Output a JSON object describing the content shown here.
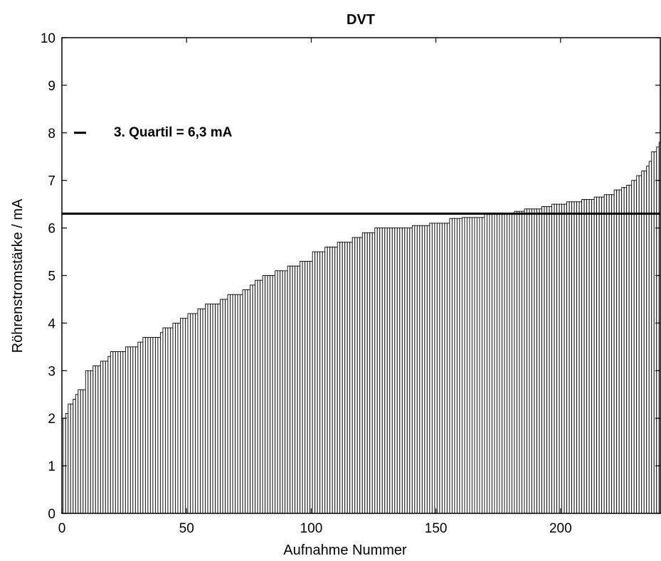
{
  "chart_data": {
    "type": "bar",
    "title": "DVT",
    "xlabel": "Aufnahme Nummer",
    "ylabel": "Röhrenstromstärke / mA",
    "xlim": [
      0,
      240
    ],
    "ylim": [
      0,
      10
    ],
    "xticks": [
      0,
      50,
      100,
      150,
      200
    ],
    "yticks": [
      0,
      1,
      2,
      3,
      4,
      5,
      6,
      7,
      8,
      9,
      10
    ],
    "grid": false,
    "bar_color": "#ffffff",
    "edge_color": "#000000",
    "reference_line": {
      "y": 6.3,
      "label": "3. Quartil = 6,3 mA"
    },
    "anchors": [
      [
        1,
        2.0
      ],
      [
        2,
        2.1
      ],
      [
        3,
        2.3
      ],
      [
        5,
        2.4
      ],
      [
        6,
        2.5
      ],
      [
        7,
        2.6
      ],
      [
        10,
        3.0
      ],
      [
        13,
        3.1
      ],
      [
        16,
        3.2
      ],
      [
        19,
        3.3
      ],
      [
        20,
        3.4
      ],
      [
        26,
        3.5
      ],
      [
        31,
        3.6
      ],
      [
        33,
        3.7
      ],
      [
        40,
        3.8
      ],
      [
        41,
        3.9
      ],
      [
        45,
        4.0
      ],
      [
        48,
        4.1
      ],
      [
        51,
        4.2
      ],
      [
        55,
        4.3
      ],
      [
        58,
        4.4
      ],
      [
        64,
        4.5
      ],
      [
        67,
        4.6
      ],
      [
        73,
        4.7
      ],
      [
        76,
        4.8
      ],
      [
        78,
        4.9
      ],
      [
        81,
        5.0
      ],
      [
        86,
        5.1
      ],
      [
        91,
        5.2
      ],
      [
        96,
        5.3
      ],
      [
        101,
        5.5
      ],
      [
        106,
        5.6
      ],
      [
        111,
        5.7
      ],
      [
        117,
        5.8
      ],
      [
        121,
        5.9
      ],
      [
        126,
        6.0
      ],
      [
        141,
        6.05
      ],
      [
        148,
        6.1
      ],
      [
        156,
        6.2
      ],
      [
        161,
        6.22
      ],
      [
        170,
        6.3
      ],
      [
        182,
        6.35
      ],
      [
        186,
        6.4
      ],
      [
        193,
        6.45
      ],
      [
        197,
        6.5
      ],
      [
        203,
        6.55
      ],
      [
        209,
        6.6
      ],
      [
        214,
        6.65
      ],
      [
        218,
        6.7
      ],
      [
        222,
        6.8
      ],
      [
        225,
        6.85
      ],
      [
        227,
        6.9
      ],
      [
        229,
        7.0
      ],
      [
        231,
        7.1
      ],
      [
        233,
        7.2
      ],
      [
        235,
        7.3
      ],
      [
        236,
        7.4
      ],
      [
        237,
        7.6
      ],
      [
        239,
        7.7
      ],
      [
        240,
        7.8
      ]
    ]
  }
}
